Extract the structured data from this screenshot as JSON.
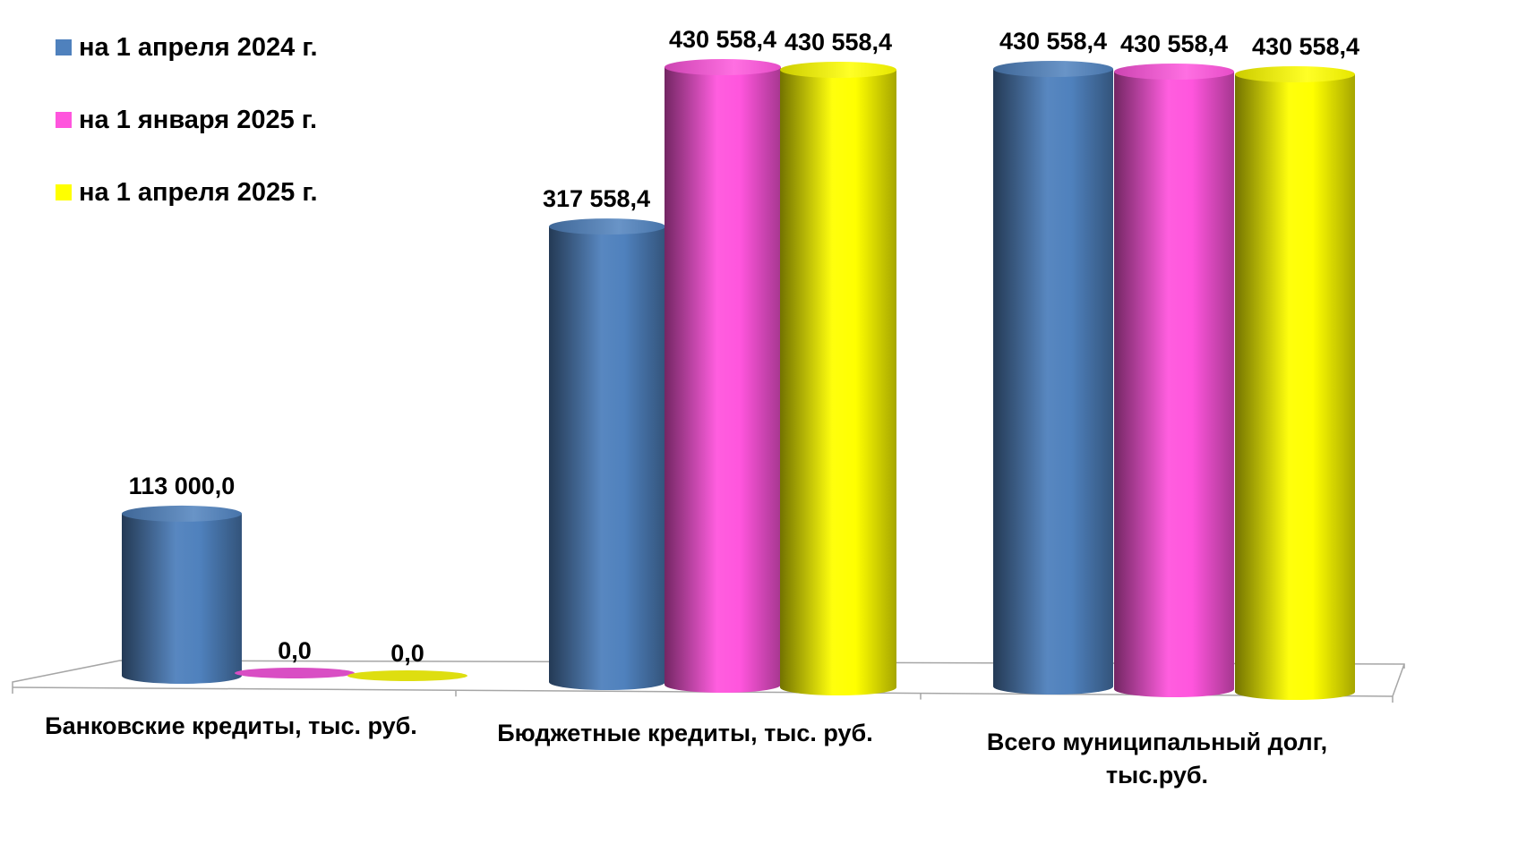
{
  "chart_data": {
    "type": "bar",
    "categories": [
      [
        "Банковские кредиты, тыс. руб."
      ],
      [
        "Бюджетные кредиты, тыс. руб."
      ],
      [
        "Всего муниципальный долг,",
        "тыс.руб."
      ]
    ],
    "series": [
      {
        "name": "на 1 апреля 2024 г.",
        "values": [
          113000.0,
          317558.4,
          430558.4
        ],
        "labels": [
          "113 000,0",
          "317 558,4",
          "430 558,4"
        ]
      },
      {
        "name": "на 1 января 2025 г.",
        "values": [
          0.0,
          430558.4,
          430558.4
        ],
        "labels": [
          "0,0",
          "430 558,4",
          "430 558,4"
        ]
      },
      {
        "name": "на 1 апреля 2025 г.",
        "values": [
          0.0,
          430558.4,
          430558.4
        ],
        "labels": [
          "0,0",
          "430 558,4",
          "430 558,4"
        ]
      }
    ],
    "ylim": [
      0,
      430558.4
    ],
    "grid": false,
    "legend_position": "top-left",
    "style": "3d-cylinder",
    "colors": [
      "#4f81bd",
      "#ff55dd",
      "#ffff00"
    ]
  }
}
